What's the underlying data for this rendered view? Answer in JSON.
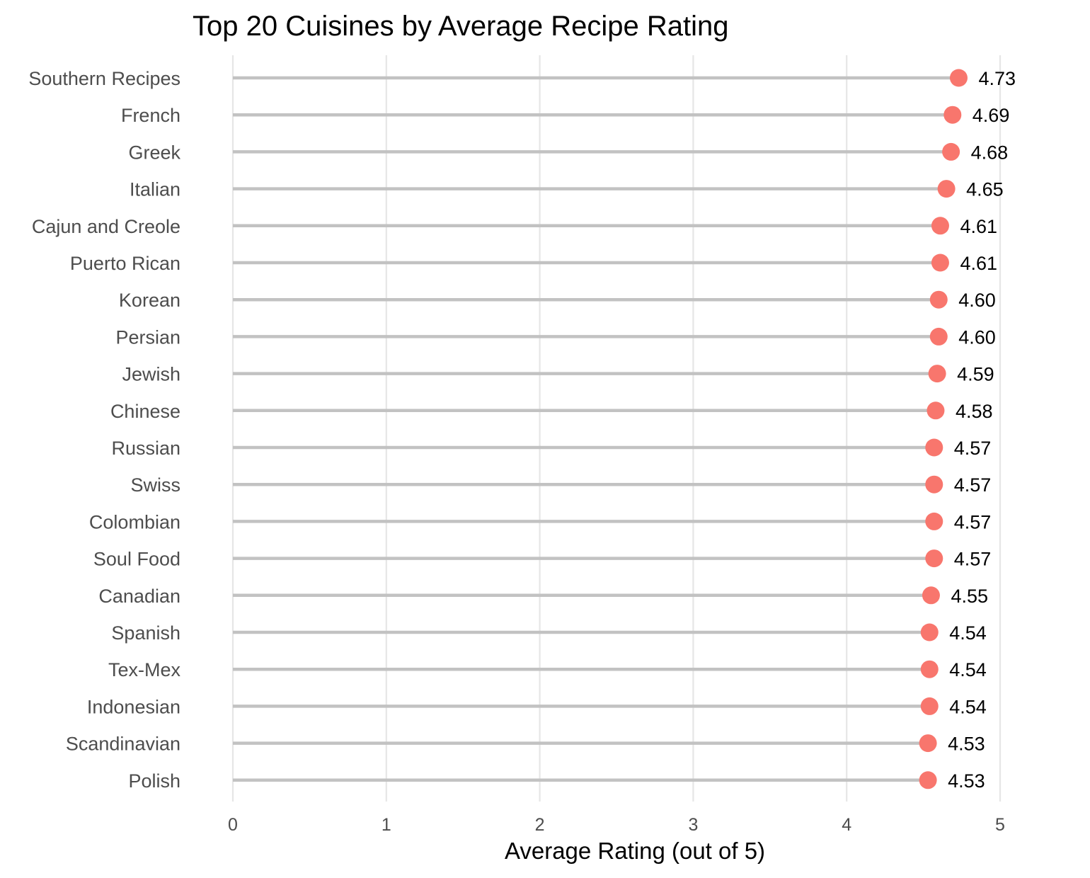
{
  "chart_data": {
    "type": "lollipop",
    "title": "Top 20 Cuisines by Average Recipe Rating",
    "xlabel": "Average Rating (out of 5)",
    "ylabel": "",
    "xlim": [
      0,
      5
    ],
    "x_ticks": [
      "0",
      "1",
      "2",
      "3",
      "4",
      "5"
    ],
    "grid": "vertical",
    "categories": [
      "Southern Recipes",
      "French",
      "Greek",
      "Italian",
      "Cajun and Creole",
      "Puerto Rican",
      "Korean",
      "Persian",
      "Jewish",
      "Chinese",
      "Russian",
      "Swiss",
      "Colombian",
      "Soul Food",
      "Canadian",
      "Spanish",
      "Tex-Mex",
      "Indonesian",
      "Scandinavian",
      "Polish"
    ],
    "values": [
      4.73,
      4.69,
      4.68,
      4.65,
      4.61,
      4.61,
      4.6,
      4.6,
      4.59,
      4.58,
      4.57,
      4.57,
      4.57,
      4.57,
      4.55,
      4.54,
      4.54,
      4.54,
      4.53,
      4.53
    ],
    "value_labels": [
      "4.73",
      "4.69",
      "4.68",
      "4.65",
      "4.61",
      "4.61",
      "4.60",
      "4.60",
      "4.59",
      "4.58",
      "4.57",
      "4.57",
      "4.57",
      "4.57",
      "4.55",
      "4.54",
      "4.54",
      "4.54",
      "4.53",
      "4.53"
    ],
    "colors": {
      "point": "#f8766d",
      "stem": "#c2c2c2",
      "grid": "#e6e6e6"
    }
  }
}
